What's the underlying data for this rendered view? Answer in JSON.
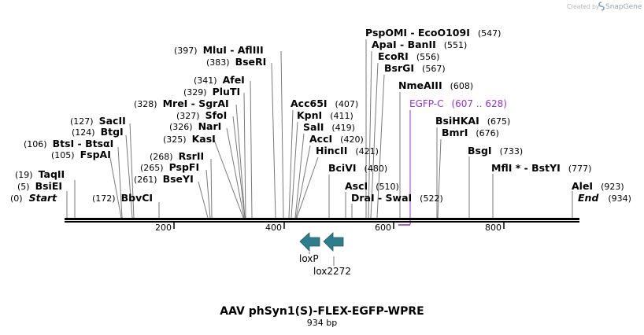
{
  "watermark": {
    "prefix": "Created by",
    "product": "SnapGene",
    "logo_icon": "snapgene-logo-icon"
  },
  "map": {
    "title": "AAV phSyn1(S)-FLEX-EGFP-WPRE",
    "length_label": "934 bp",
    "length": 934,
    "start_label": "Start",
    "end_label": "End",
    "start_pos_label": "(0)",
    "end_pos_label": "(934)",
    "ticks": [
      "200",
      "400",
      "600",
      "800"
    ],
    "colors": {
      "backbone": "#000000",
      "feature_arrow": "#2e7d8c",
      "egfp": "#9b30d9",
      "leader": "#7a7a7a"
    }
  },
  "sites": [
    {
      "name": "BsiEI",
      "pos": "(5)"
    },
    {
      "name": "TaqII",
      "pos": "(19)"
    },
    {
      "name": "FspAI",
      "pos": "(105)"
    },
    {
      "name": "BtsI - BtsαI",
      "pos": "(106)"
    },
    {
      "name": "BtgI",
      "pos": "(124)"
    },
    {
      "name": "SacII",
      "pos": "(127)"
    },
    {
      "name": "BbvCI",
      "pos": "(172)"
    },
    {
      "name": "BseYI",
      "pos": "(261)"
    },
    {
      "name": "PspFI",
      "pos": "(265)"
    },
    {
      "name": "RsrII",
      "pos": "(268)"
    },
    {
      "name": "KasI",
      "pos": "(325)"
    },
    {
      "name": "NarI",
      "pos": "(326)"
    },
    {
      "name": "SfoI",
      "pos": "(327)"
    },
    {
      "name": "MreI - SgrAI",
      "pos": "(328)"
    },
    {
      "name": "PluTI",
      "pos": "(329)"
    },
    {
      "name": "AfeI",
      "pos": "(341)"
    },
    {
      "name": "BseRI",
      "pos": "(383)"
    },
    {
      "name": "MluI - AflIII",
      "pos": "(397)"
    },
    {
      "name": "Acc65I",
      "pos": "(407)"
    },
    {
      "name": "KpnI",
      "pos": "(411)"
    },
    {
      "name": "SalI",
      "pos": "(419)"
    },
    {
      "name": "AccI",
      "pos": "(420)"
    },
    {
      "name": "HincII",
      "pos": "(421)"
    },
    {
      "name": "BciVI",
      "pos": "(480)"
    },
    {
      "name": "AscI",
      "pos": "(510)"
    },
    {
      "name": "DraI - SwaI",
      "pos": "(522)"
    },
    {
      "name": "PspOMI - EcoO109I",
      "pos": "(547)"
    },
    {
      "name": "ApaI - BanII",
      "pos": "(551)"
    },
    {
      "name": "EcoRI",
      "pos": "(556)"
    },
    {
      "name": "BsrGI",
      "pos": "(567)"
    },
    {
      "name": "NmeAIII",
      "pos": "(608)"
    },
    {
      "name": "BsiHKAI",
      "pos": "(675)"
    },
    {
      "name": "BmrI",
      "pos": "(676)"
    },
    {
      "name": "BsgI",
      "pos": "(733)"
    },
    {
      "name": "MflI * - BstYI",
      "pos": "(777)"
    },
    {
      "name": "AleI",
      "pos": "(923)"
    }
  ],
  "features": {
    "egfp": {
      "name": "EGFP-C",
      "range": "(607 .. 628)"
    },
    "loxp": {
      "name": "loxP"
    },
    "lox2272": {
      "name": "lox2272"
    }
  }
}
